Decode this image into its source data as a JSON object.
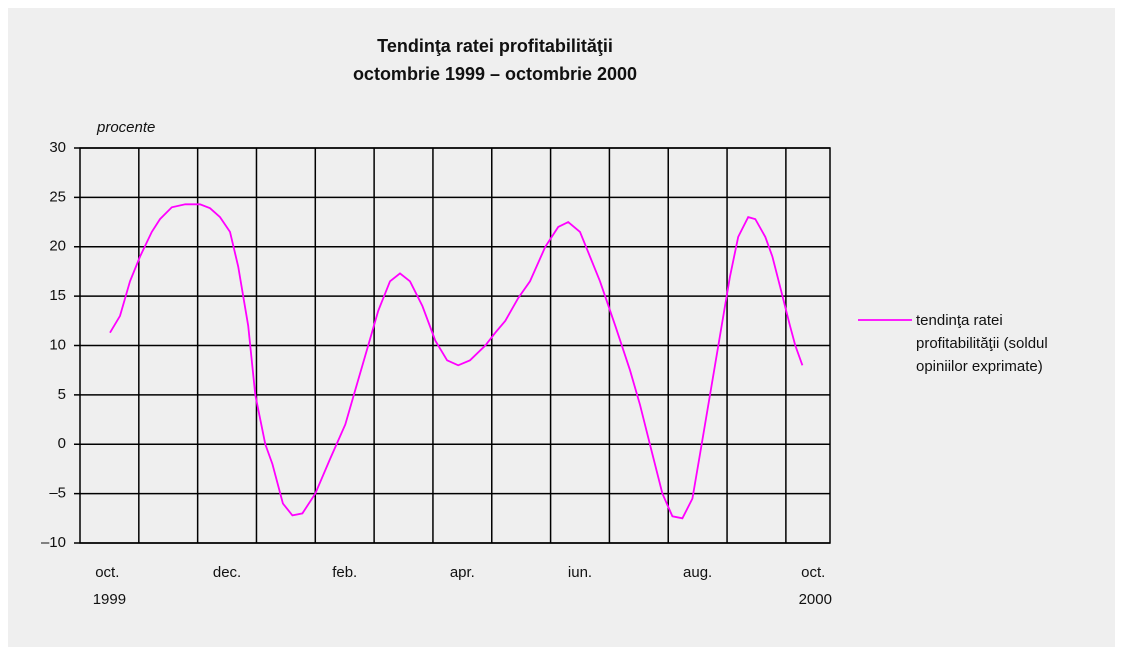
{
  "chart_data": {
    "type": "line",
    "title": "Tendinţa ratei profitabilităţii",
    "subtitle": "octombrie 1999 – octombrie 2000",
    "y_label": "procente",
    "categories": [
      "oct. 1999",
      null,
      "dec.",
      null,
      "feb.",
      null,
      "apr.",
      null,
      "iun.",
      null,
      "aug.",
      null,
      "oct. 2000"
    ],
    "xlim": [
      0,
      12.75
    ],
    "ylim": [
      -10,
      30
    ],
    "yticks": [
      {
        "value": -10,
        "label": "–10"
      },
      {
        "value": -5,
        "label": "–5"
      },
      0,
      5,
      10,
      15,
      20,
      25,
      30
    ],
    "grid": true,
    "legend": "right",
    "series": [
      {
        "name": "tendinţa ratei profitabilităţii (soldul opiniilor exprimate)",
        "color": "#ff00ff",
        "x": [
          0.51,
          0.68,
          0.85,
          1.02,
          1.22,
          1.36,
          1.56,
          1.79,
          2.04,
          2.21,
          2.38,
          2.55,
          2.69,
          2.86,
          2.98,
          3.15,
          3.27,
          3.45,
          3.61,
          3.78,
          4.0,
          4.25,
          4.51,
          4.68,
          4.9,
          5.07,
          5.27,
          5.44,
          5.61,
          5.82,
          6.04,
          6.24,
          6.43,
          6.63,
          6.89,
          7.06,
          7.23,
          7.45,
          7.65,
          7.91,
          8.13,
          8.3,
          8.5,
          8.67,
          8.84,
          9.1,
          9.35,
          9.52,
          9.73,
          9.9,
          10.07,
          10.24,
          10.41,
          10.54,
          10.71,
          10.88,
          11.05,
          11.19,
          11.36,
          11.48,
          11.65,
          11.77,
          11.9,
          12.07,
          12.16,
          12.28
        ],
        "values": [
          11.3,
          13,
          16.5,
          19,
          21.5,
          22.8,
          24,
          24.3,
          24.3,
          23.9,
          23,
          21.5,
          18,
          12,
          5,
          0,
          -2,
          -6,
          -7.2,
          -7,
          -5,
          -1.5,
          2,
          5.5,
          10,
          13.5,
          16.5,
          17.3,
          16.5,
          14,
          10.5,
          8.5,
          8,
          8.5,
          10,
          11.3,
          12.5,
          14.8,
          16.5,
          20,
          22,
          22.5,
          21.5,
          19,
          16.5,
          12,
          7.5,
          4,
          -1,
          -5,
          -7.3,
          -7.5,
          -5.5,
          -1,
          5,
          11,
          17,
          21,
          23,
          22.8,
          21,
          19,
          16,
          12,
          10,
          8
        ]
      }
    ]
  }
}
